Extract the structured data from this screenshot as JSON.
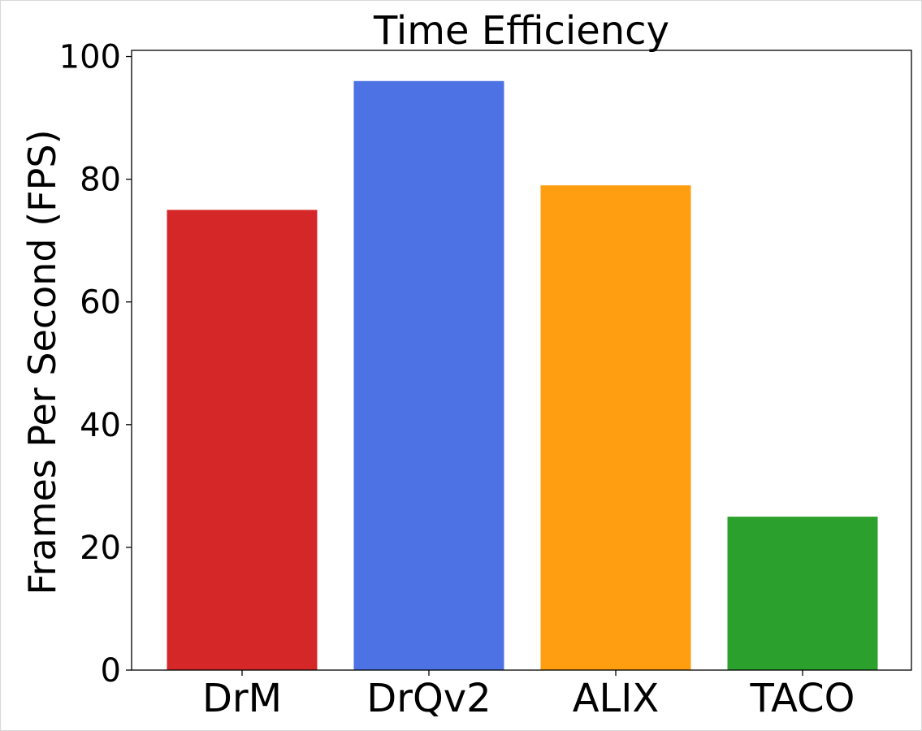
{
  "chart_data": {
    "type": "bar",
    "title": "Time Efficiency",
    "xlabel": "",
    "ylabel": "Frames Per Second (FPS)",
    "categories": [
      "DrM",
      "DrQv2",
      "ALIX",
      "TACO"
    ],
    "values": [
      75,
      96,
      79,
      25
    ],
    "colors": [
      "#d62728",
      "#4c72e3",
      "#ff9e10",
      "#2ca02c"
    ],
    "ylim": [
      0,
      101
    ],
    "yticks": [
      0,
      20,
      40,
      60,
      80,
      100
    ],
    "ytick_labels": [
      "0",
      "20",
      "40",
      "60",
      "80",
      "100"
    ],
    "grid": false,
    "legend": "none"
  }
}
